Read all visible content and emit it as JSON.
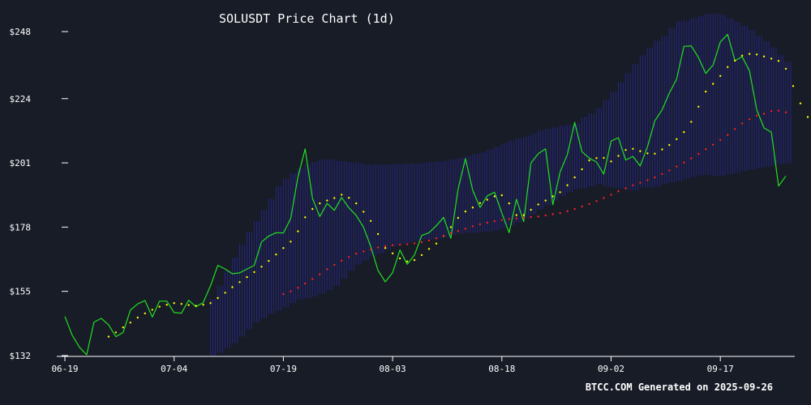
{
  "chart_data": {
    "type": "line",
    "title": "SOLUSDT Price Chart (1d)",
    "footer": "BTCC.COM Generated on 2025-09-26",
    "xlabel": "",
    "ylabel": "",
    "ylim": [
      132,
      250
    ],
    "y_ticks": [
      {
        "value": 132,
        "label": "$132"
      },
      {
        "value": 155,
        "label": "$155"
      },
      {
        "value": 178,
        "label": "$178"
      },
      {
        "value": 201,
        "label": "$201"
      },
      {
        "value": 224,
        "label": "$224"
      },
      {
        "value": 248,
        "label": "$248"
      }
    ],
    "x_ticks": [
      {
        "x": 0,
        "label": "06-19"
      },
      {
        "x": 15,
        "label": "07-04"
      },
      {
        "x": 30,
        "label": "07-19"
      },
      {
        "x": 45,
        "label": "08-03"
      },
      {
        "x": 60,
        "label": "08-18"
      },
      {
        "x": 75,
        "label": "09-02"
      },
      {
        "x": 90,
        "label": "09-17"
      }
    ],
    "grid": false,
    "legend": "none",
    "colors": {
      "background": "#181c27",
      "price": "#22e022",
      "ma_short": "#ffff00",
      "ma_long": "#ff2020",
      "band": "#2a2aa0",
      "axis": "#ffffff"
    },
    "x_count": 100,
    "series": [
      {
        "style": "line",
        "values": [
          146,
          139.3,
          135,
          132.3,
          144,
          145.3,
          143,
          138.8,
          140.3,
          148.3,
          150.5,
          151.7,
          145.8,
          151.5,
          151.5,
          147.4,
          147.2,
          151.8,
          149.5,
          151,
          157,
          164.3,
          163,
          161.3,
          161.6,
          163,
          164.3,
          172.7,
          174.8,
          176,
          175.9,
          181,
          196,
          206,
          188.3,
          181.8,
          186.5,
          184,
          188.6,
          184.9,
          182.2,
          178,
          171,
          162.5,
          158.4,
          161.7,
          169.8,
          164.7,
          168,
          175,
          176,
          178.5,
          181.5,
          174,
          191.7,
          202.5,
          191.2,
          185,
          189.2,
          190.5,
          183,
          176,
          188,
          180,
          201,
          204.3,
          206,
          186,
          197.7,
          204,
          215.5,
          205,
          202.7,
          201.3,
          197,
          208.8,
          210,
          202,
          203.3,
          199.9,
          206.8,
          216,
          220,
          226,
          231,
          242.7,
          242.9,
          238.7,
          233,
          236,
          244.3,
          247,
          237.6,
          239,
          234,
          220,
          213.5,
          212,
          192.7,
          196.3
        ]
      },
      {
        "style": "dots",
        "start_index": 6,
        "values": [
          138.8,
          140.3,
          142.1,
          143.8,
          145.6,
          147.1,
          148.4,
          149.5,
          150.2,
          150.8,
          150.5,
          150.1,
          149.8,
          150.2,
          150.8,
          152.6,
          154.5,
          156.5,
          158.3,
          160.1,
          161.9,
          163.8,
          165.9,
          168.2,
          170.5,
          172.8,
          176.5,
          181.5,
          184.5,
          186.5,
          187.5,
          188.4,
          189.6,
          188.5,
          186.5,
          183.5,
          180.2,
          175.5,
          170.5,
          168.6,
          166.8,
          165.7,
          166.2,
          168,
          170.2,
          172.1,
          174.8,
          178,
          181.3,
          183.6,
          185,
          186.6,
          187.8,
          189,
          189.4,
          186.5,
          182.3,
          182.3,
          184.2,
          186.1,
          187.5,
          189,
          190.5,
          193,
          195.8,
          198.7,
          201.9,
          202.7,
          202.8,
          201.5,
          203.5,
          205.6,
          206,
          205.2,
          204.4,
          204.3,
          205.8,
          207.4,
          209.5,
          212,
          215.7,
          221.1,
          226.5,
          229.3,
          232.1,
          235.3,
          237.6,
          239.4,
          240,
          239.8,
          239.1,
          238.3,
          237.5,
          234.7,
          228.5,
          222.3,
          217.4
        ]
      },
      {
        "style": "dots",
        "start_index": 30,
        "values": [
          154,
          155,
          156.3,
          157.8,
          159.4,
          161.1,
          162.9,
          164.5,
          166,
          167.3,
          168.5,
          169.3,
          170,
          170.7,
          171.2,
          171.5,
          171.7,
          171.9,
          172.2,
          172.6,
          173.2,
          174,
          174.9,
          175.8,
          176.6,
          177.4,
          178.3,
          179,
          179.6,
          180.1,
          180.5,
          180.9,
          181.1,
          181.4,
          181.6,
          181.8,
          182.2,
          182.6,
          183,
          183.7,
          184.5,
          185.4,
          186.3,
          187.3,
          188.4,
          189.6,
          190.8,
          191.9,
          193,
          193.9,
          194.8,
          195.8,
          197,
          198.3,
          199.7,
          201.1,
          202.6,
          204.2,
          205.9,
          207.5,
          209.2,
          211,
          213.1,
          215.1,
          216.6,
          217.9,
          218.6,
          219.5,
          219.7,
          219.1
        ]
      }
    ],
    "band": {
      "start_index": 20,
      "upper": [
        152.2,
        157.1,
        162.3,
        167,
        171.7,
        176.1,
        180.1,
        184.1,
        188.1,
        192.5,
        195.3,
        197.2,
        199,
        200.5,
        201.4,
        202.2,
        202.3,
        201.7,
        201.6,
        201.2,
        200.9,
        200.5,
        200.3,
        200.4,
        200.4,
        200.6,
        200.6,
        200.7,
        200.7,
        201,
        201.3,
        201.4,
        201.7,
        202.2,
        202.8,
        203.4,
        204.1,
        204.7,
        205.7,
        206.7,
        208,
        208.9,
        209.8,
        210.4,
        211.4,
        212.6,
        213.2,
        213.7,
        214.3,
        214.6,
        215.1,
        217.4,
        218.7,
        220.6,
        223.6,
        226.5,
        229.8,
        233.1,
        236.4,
        239.5,
        242.2,
        244.7,
        246.4,
        249.3,
        251.6,
        251.9,
        252.9,
        253.6,
        254.3,
        254.5,
        254,
        252.7,
        251.4,
        250.2,
        248.7,
        246.5,
        244.6,
        242.4,
        239.7,
        237.2
      ],
      "lower": [
        132,
        133,
        134.7,
        136.5,
        138.8,
        141.5,
        144,
        145.4,
        147,
        148.1,
        149.3,
        150.8,
        152.1,
        152.5,
        153.2,
        154.2,
        155.5,
        157,
        159.6,
        162.3,
        164.6,
        166,
        167.5,
        168.5,
        169.8,
        171.2,
        171.9,
        172.5,
        173,
        173.3,
        173.5,
        173.7,
        174.4,
        175.2,
        175.7,
        175.9,
        175.9,
        176.3,
        176.4,
        176.9,
        177.5,
        178.7,
        179.7,
        180.9,
        182.5,
        184.3,
        185.8,
        187.6,
        189.2,
        190.4,
        191.6,
        191.8,
        192.6,
        193.4,
        192.6,
        192.2,
        191.9,
        191.3,
        191.2,
        192.2,
        192.1,
        192.5,
        193.3,
        194,
        194.5,
        195.2,
        195.9,
        196.5,
        196.7,
        196.3,
        196.4,
        197,
        197.4,
        198.1,
        198.6,
        199.1,
        199.5,
        200.1,
        200.6,
        200.8
      ]
    }
  }
}
